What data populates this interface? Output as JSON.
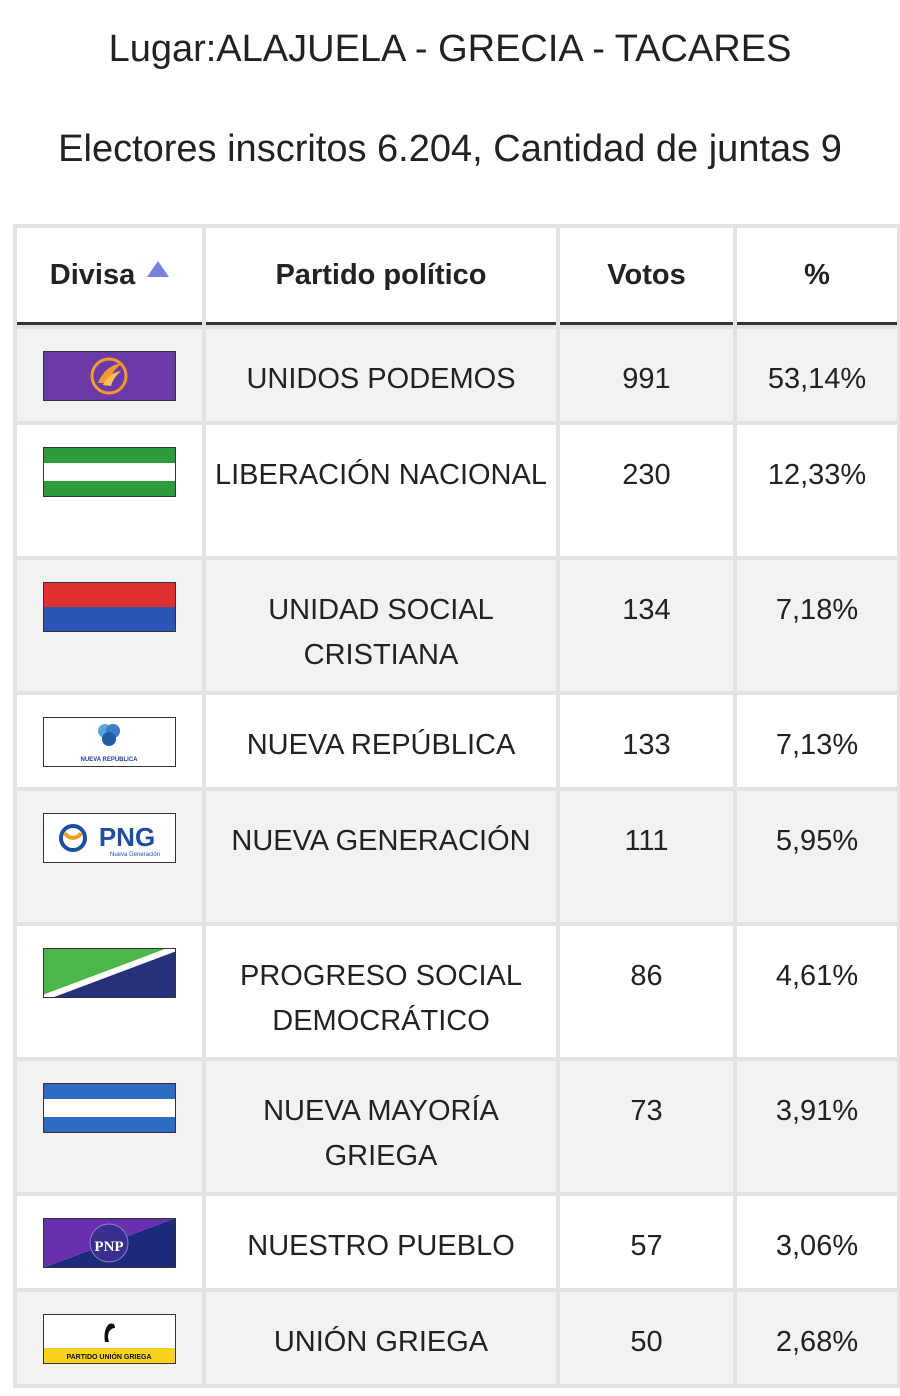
{
  "header": {
    "place": "Lugar:ALAJUELA - GRECIA - TACARES",
    "summary": "Electores inscritos 6.204, Cantidad de juntas 9"
  },
  "table": {
    "columns": [
      "Divisa",
      "Partido político",
      "Votos",
      "%"
    ],
    "rows": [
      {
        "flag": "unidos-podemos-flag",
        "party": "UNIDOS PODEMOS",
        "votes": "991",
        "pct": "53,14%"
      },
      {
        "flag": "liberacion-nacional-flag",
        "party": "LIBERACIÓN NACIONAL",
        "votes": "230",
        "pct": "12,33%"
      },
      {
        "flag": "unidad-social-cristiana-flag",
        "party": "UNIDAD SOCIAL CRISTIANA",
        "votes": "134",
        "pct": "7,18%"
      },
      {
        "flag": "nueva-republica-flag",
        "party": "NUEVA REPÚBLICA",
        "votes": "133",
        "pct": "7,13%",
        "logo_text": "NUEVA REPÚBLICA"
      },
      {
        "flag": "nueva-generacion-flag",
        "party": "NUEVA GENERACIÓN",
        "votes": "111",
        "pct": "5,95%",
        "logo_text": "PNG",
        "logo_sub": "Nueva Generación"
      },
      {
        "flag": "progreso-social-democratico-flag",
        "party": "PROGRESO SOCIAL DEMOCRÁTICO",
        "votes": "86",
        "pct": "4,61%"
      },
      {
        "flag": "nueva-mayoria-griega-flag",
        "party": "NUEVA MAYORÍA GRIEGA",
        "votes": "73",
        "pct": "3,91%"
      },
      {
        "flag": "nuestro-pueblo-flag",
        "party": "NUESTRO PUEBLO",
        "votes": "57",
        "pct": "3,06%",
        "logo_text": "PNP"
      },
      {
        "flag": "union-griega-flag",
        "party": "UNIÓN GRIEGA",
        "votes": "50",
        "pct": "2,68%",
        "logo_text": "PARTIDO UNIÓN GRIEGA"
      }
    ]
  },
  "colors": {
    "sort_arrow": "#7b7fe0",
    "podemos_purple": "#6a3aa8",
    "pln_green": "#2e9b3c",
    "pusc_red": "#e0302f",
    "pusc_blue": "#2b56b8",
    "png_blue": "#1d4fa0",
    "pnp_navy": "#1c2a7a"
  }
}
